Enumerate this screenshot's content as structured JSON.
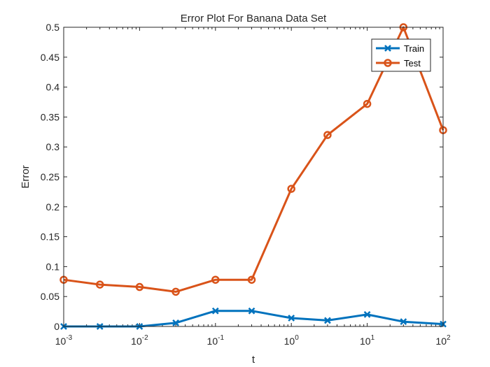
{
  "chart_data": {
    "type": "line",
    "title": "Error Plot For Banana Data Set",
    "xlabel": "t",
    "ylabel": "Error",
    "xscale": "log",
    "xlim": [
      0.001,
      100
    ],
    "ylim": [
      0,
      0.5
    ],
    "xticks": [
      {
        "value": 0.001,
        "base": "10",
        "exp": "-3"
      },
      {
        "value": 0.01,
        "base": "10",
        "exp": "-2"
      },
      {
        "value": 0.1,
        "base": "10",
        "exp": "-1"
      },
      {
        "value": 1,
        "base": "10",
        "exp": "0"
      },
      {
        "value": 10,
        "base": "10",
        "exp": "1"
      },
      {
        "value": 100,
        "base": "10",
        "exp": "2"
      }
    ],
    "yticks": [
      {
        "value": 0,
        "label": "0"
      },
      {
        "value": 0.05,
        "label": "0.05"
      },
      {
        "value": 0.1,
        "label": "0.1"
      },
      {
        "value": 0.15,
        "label": "0.15"
      },
      {
        "value": 0.2,
        "label": "0.2"
      },
      {
        "value": 0.25,
        "label": "0.25"
      },
      {
        "value": 0.3,
        "label": "0.3"
      },
      {
        "value": 0.35,
        "label": "0.35"
      },
      {
        "value": 0.4,
        "label": "0.4"
      },
      {
        "value": 0.45,
        "label": "0.45"
      },
      {
        "value": 0.5,
        "label": "0.5"
      }
    ],
    "x": [
      0.001,
      0.003,
      0.01,
      0.03,
      0.1,
      0.3,
      1,
      3,
      10,
      30,
      100
    ],
    "series": [
      {
        "name": "Train",
        "color": "#0072BD",
        "marker": "x",
        "values": [
          0.0,
          0.0,
          0.0,
          0.006,
          0.026,
          0.026,
          0.014,
          0.01,
          0.02,
          0.008,
          0.004
        ]
      },
      {
        "name": "Test",
        "color": "#D95319",
        "marker": "o",
        "values": [
          0.078,
          0.07,
          0.066,
          0.058,
          0.078,
          0.078,
          0.23,
          0.32,
          0.372,
          0.5,
          0.328
        ]
      }
    ],
    "grid": false,
    "legend": "top-right"
  }
}
